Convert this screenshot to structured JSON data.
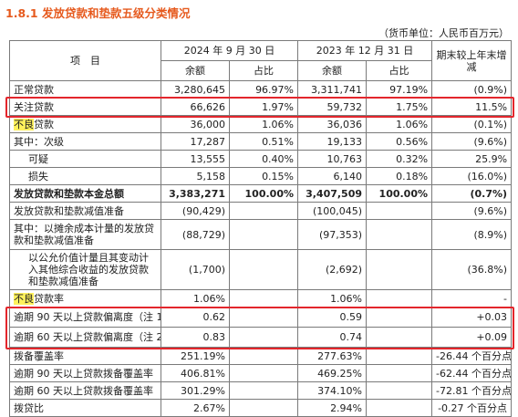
{
  "section_title": "1.8.1 发放贷款和垫款五级分类情况",
  "unit_note": "（货币单位：人民币百万元）",
  "header": {
    "item": "项　目",
    "period1": "2024 年 9 月 30 日",
    "period2": "2023 年 12 月 31 日",
    "change": "期末较上年末增减",
    "balance1": "余额",
    "ratio1": "占比",
    "balance2": "余额",
    "ratio2": "占比"
  },
  "rows": [
    {
      "label": "正常贷款",
      "b1": "3,280,645",
      "r1": "96.97%",
      "b2": "3,311,741",
      "r2": "97.19%",
      "chg": "(0.9%)"
    },
    {
      "label": "关注贷款",
      "b1": "66,626",
      "r1": "1.97%",
      "b2": "59,732",
      "r2": "1.75%",
      "chg": "11.5%"
    },
    {
      "label_hl": "不良",
      "label_rest": "贷款",
      "b1": "36,000",
      "r1": "1.06%",
      "b2": "36,036",
      "r2": "1.06%",
      "chg": "(0.1%)"
    },
    {
      "label": "其中：次级",
      "b1": "17,287",
      "r1": "0.51%",
      "b2": "19,133",
      "r2": "0.56%",
      "chg": "(9.6%)"
    },
    {
      "label": "可疑",
      "b1": "13,555",
      "r1": "0.40%",
      "b2": "10,763",
      "r2": "0.32%",
      "chg": "25.9%"
    },
    {
      "label": "损失",
      "b1": "5,158",
      "r1": "0.15%",
      "b2": "6,140",
      "r2": "0.18%",
      "chg": "(16.0%)"
    },
    {
      "label": "发放贷款和垫款本金总额",
      "b1": "3,383,271",
      "r1": "100.00%",
      "b2": "3,407,509",
      "r2": "100.00%",
      "chg": "(0.7%)"
    },
    {
      "label": "发放贷款和垫款减值准备",
      "b1": "(90,429)",
      "b2": "(100,045)",
      "chg": "(9.6%)"
    },
    {
      "label": "其中：以摊余成本计量的发放贷款和垫款减值准备",
      "b1": "(88,729)",
      "b2": "(97,353)",
      "chg": "(8.9%)"
    },
    {
      "label": "以公允价值计量且其变动计入其他综合收益的发放贷款和垫款减值准备",
      "b1": "(1,700)",
      "b2": "(2,692)",
      "chg": "(36.8%)"
    },
    {
      "label_hl": "不良",
      "label_rest": "贷款率",
      "b1": "1.06%",
      "b2": "1.06%",
      "chg": "-"
    },
    {
      "label": "逾期 90 天以上贷款偏离度（注 1）",
      "b1": "0.62",
      "b2": "0.59",
      "chg": "+0.03"
    },
    {
      "label": "逾期 60 天以上贷款偏离度（注 2）",
      "b1": "0.83",
      "b2": "0.74",
      "chg": "+0.09"
    },
    {
      "label": "拨备覆盖率",
      "b1": "251.19%",
      "b2": "277.63%",
      "chg": "-26.44 个百分点"
    },
    {
      "label": "逾期 90 天以上贷款拨备覆盖率",
      "b1": "406.81%",
      "b2": "469.25%",
      "chg": "-62.44 个百分点"
    },
    {
      "label": "逾期 60 天以上贷款拨备覆盖率",
      "b1": "301.29%",
      "b2": "374.10%",
      "chg": "-72.81 个百分点"
    },
    {
      "label": "拨贷比",
      "b1": "2.67%",
      "b2": "2.94%",
      "chg": "-0.27 个百分点"
    }
  ]
}
